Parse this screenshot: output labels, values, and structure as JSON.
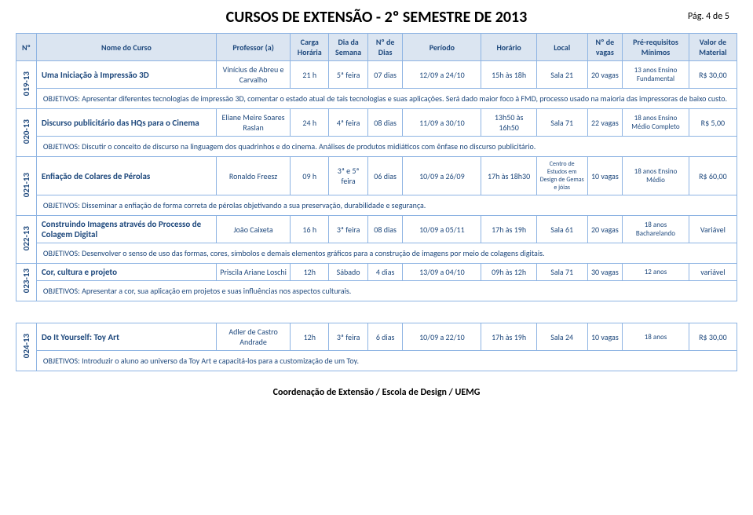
{
  "page": {
    "title": "CURSOS DE EXTENSÃO  -  2º SEMESTRE DE 2013",
    "page_label": "Pág. 4 de 5",
    "footer": "Coordenação de Extensão / Escola de Design / UEMG"
  },
  "headers": {
    "num": "Nº",
    "nome": "Nome do Curso",
    "prof": "Professor (a)",
    "carga": "Carga Horária",
    "dia": "Dia da Semana",
    "ndias": "Nº de Dias",
    "periodo": "Período",
    "horario": "Horário",
    "local": "Local",
    "vagas": "Nº de vagas",
    "prereq": "Pré-requisitos Mínimos",
    "valor": "Valor de Material"
  },
  "courses": [
    {
      "id": "019-13",
      "nome": "Uma Iniciação  à Impressão 3D",
      "prof": "Vinícius de Abreu e Carvalho",
      "carga": "21 h",
      "dia": "5ª feira",
      "ndias": "07 dias",
      "periodo": "12/09 a 24/10",
      "horario": "15h às 18h",
      "local": "Sala 21",
      "vagas": "20 vagas",
      "prereq": "13 anos Ensino Fundamental",
      "valor": "R$ 30,00",
      "obj": "OBJETIVOS:  Apresentar diferentes tecnologias de impressão 3D, comentar o estado atual de tais tecnologias e suas aplicações. Será dado maior foco à FMD, processo usado na maioria das impressoras de baixo custo."
    },
    {
      "id": "020-13",
      "nome": "Discurso publicitário das HQs para o Cinema",
      "prof": "Eliane Meire Soares Raslan",
      "carga": "24 h",
      "dia": "4ª feira",
      "ndias": "08 dias",
      "periodo": "11/09  a  30/10",
      "horario": "13h50 às 16h50",
      "local": "Sala 71",
      "vagas": "22 vagas",
      "prereq": "18 anos  Ensino Médio Completo",
      "valor": "R$ 5,00",
      "obj": "OBJETIVOS:  Discutir o conceito de discurso na linguagem dos quadrinhos e do cinema. Análises de produtos midiáticos com ênfase no discurso publicitário."
    },
    {
      "id": "021-13",
      "nome": "Enfiação de Colares de Pérolas",
      "prof": "Ronaldo Freesz",
      "carga": "09 h",
      "dia": "3ª e 5ª feira",
      "ndias": "06 dias",
      "periodo": "10/09 a 26/09",
      "horario": "17h às 18h30",
      "local": "Centro de Estudos em Design de Gemas e jóias",
      "vagas": "10 vagas",
      "prereq": "18 anos Ensino Médio",
      "valor": "R$ 60,00",
      "obj": "OBJETIVOS:  Disseminar a enfiação de forma correta de pérolas objetivando a sua preservação,  durabilidade e segurança."
    },
    {
      "id": "022-13",
      "nome": "Construindo Imagens através do Processo de Colagem Digital",
      "prof": "João Caixeta",
      "carga": "16 h",
      "dia": "3ª feira",
      "ndias": "08 dias",
      "periodo": "10/09 a 05/11",
      "horario": "17h às 19h",
      "local": "Sala 61",
      "vagas": "20 vagas",
      "prereq": "18 anos Bacharelando",
      "valor": "Variável",
      "obj": "OBJETIVOS:  Desenvolver o senso de uso das formas, cores, símbolos e demais elementos gráficos para a construção de imagens por meio de colagens digitais."
    },
    {
      "id": "023-13",
      "nome": "Cor, cultura e projeto",
      "prof": "Priscila Ariane Loschi",
      "carga": "12h",
      "dia": "Sábado",
      "ndias": "4 dias",
      "periodo": "13/09 a 04/10",
      "horario": "09h às 12h",
      "local": "Sala 71",
      "vagas": "30 vagas",
      "prereq": "12 anos",
      "valor": "variável",
      "obj": "OBJETIVOS:  Apresentar a cor, sua aplicação em projetos e suas influências nos aspectos culturais."
    },
    {
      "id": "024-13",
      "nome": "Do It Yourself: Toy Art",
      "prof": "Adler de Castro Andrade",
      "carga": "12h",
      "dia": "3ª feira",
      "ndias": "6 dias",
      "periodo": "10/09 a 22/10",
      "horario": "17h às 19h",
      "local": "Sala 24",
      "vagas": "10 vagas",
      "prereq": "18 anos",
      "valor": "R$ 30,00",
      "obj": "OBJETIVOS:  Introduzir o aluno ao universo da Toy Art e capacitá-los para a customização de um Toy."
    }
  ]
}
